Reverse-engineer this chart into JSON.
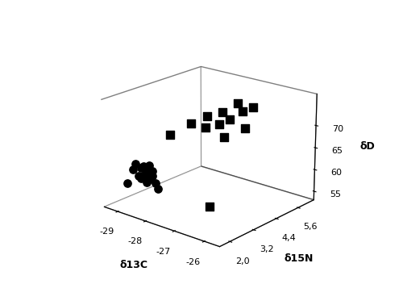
{
  "domestic_circles": {
    "x13C": [
      -29.0,
      -28.8,
      -28.7,
      -28.6,
      -28.5,
      -28.5,
      -28.4,
      -28.4,
      -28.3,
      -28.3,
      -28.2,
      -28.2,
      -28.1,
      -28.1,
      -28.0,
      -27.9
    ],
    "x15N": [
      2.0,
      2.0,
      2.0,
      2.0,
      2.0,
      2.0,
      2.0,
      2.0,
      2.0,
      2.0,
      2.0,
      2.0,
      2.0,
      2.0,
      2.0,
      2.0
    ],
    "xD": [
      58.5,
      62.0,
      63.5,
      61.0,
      60.5,
      63.0,
      61.5,
      63.5,
      60.0,
      62.5,
      61.0,
      64.0,
      63.0,
      62.0,
      60.5,
      59.5
    ]
  },
  "imported_squares": {
    "x13C": [
      -28.2,
      -27.8,
      -27.6,
      -27.5,
      -27.4,
      -27.3,
      -27.2,
      -27.0,
      -26.9,
      -26.8,
      -26.7,
      -26.5,
      -26.3
    ],
    "x15N": [
      3.0,
      3.5,
      4.0,
      3.8,
      4.5,
      4.2,
      5.0,
      4.0,
      4.8,
      5.2,
      4.6,
      3.5,
      2.2
    ],
    "xD": [
      69.0,
      71.5,
      72.5,
      70.5,
      73.0,
      71.0,
      74.5,
      69.0,
      73.5,
      74.0,
      70.5,
      74.5,
      58.5
    ]
  },
  "x13C_ticks": [
    -29,
    -28,
    -27,
    -26
  ],
  "x13C_lim": [
    -29.5,
    -25.5
  ],
  "x15N_ticks": [
    2.0,
    3.2,
    4.4,
    5.6
  ],
  "x15N_lim": [
    1.5,
    6.5
  ],
  "xD_ticks": [
    55,
    60,
    65,
    70
  ],
  "xD_lim": [
    53,
    77
  ],
  "xlabel": "δ13C",
  "ylabel": "δ15N",
  "zlabel": "δD",
  "marker_color": "#000000",
  "background_color": "#ffffff",
  "elev": 20,
  "azim": -50
}
